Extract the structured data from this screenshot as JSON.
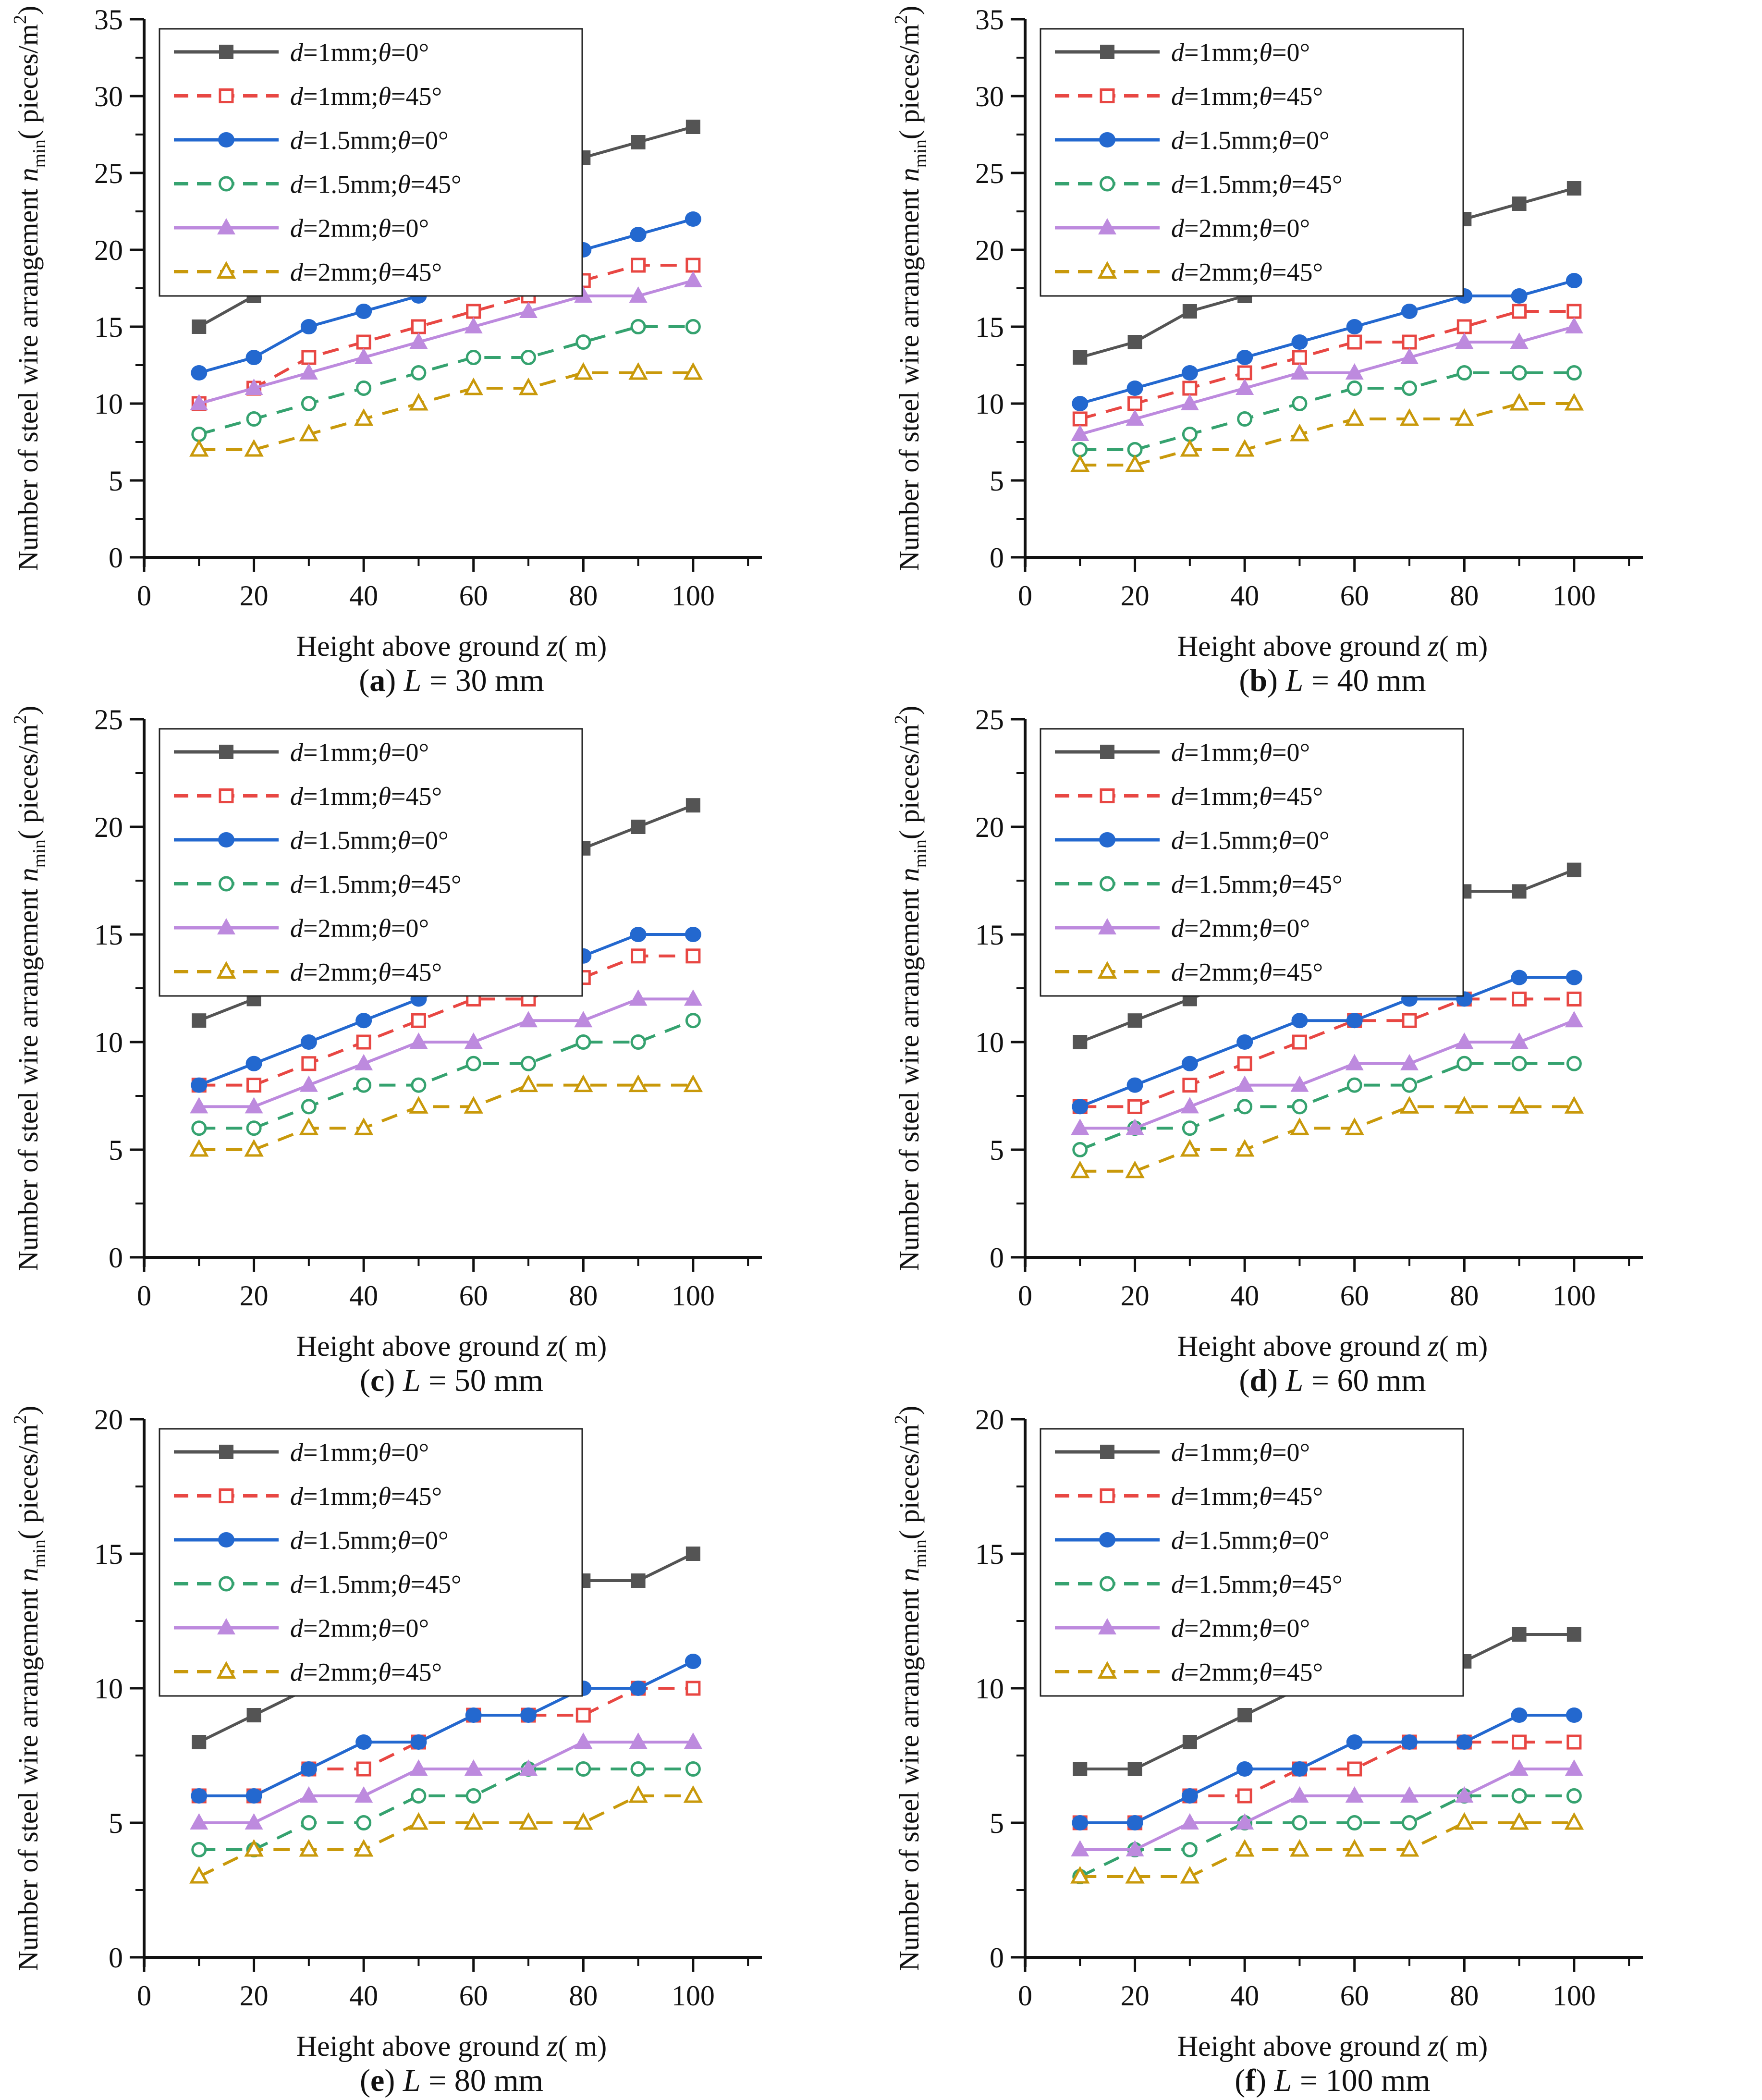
{
  "figure": {
    "description": "Six-panel line chart figure: minimum steel wire arrangement density versus height above ground for different wire diameters d and angles θ, at six wire lengths L"
  },
  "shared": {
    "xlabel": {
      "text": "Height above ground ",
      "var": "z",
      "unit": "(  m)"
    },
    "ylabel": {
      "text": "Number of steel wire arrangement ",
      "var": "n",
      "sub": "min",
      "unit_pre": "(  pieces/m",
      "sup": "2",
      "unit_post": ")"
    },
    "x_ticks": [
      0,
      20,
      40,
      60,
      80,
      100
    ],
    "x_minor_ticks": [
      10,
      30,
      50,
      70,
      90,
      110
    ],
    "xlim": [
      0,
      112
    ],
    "axis_color": "#111111",
    "legend": [
      {
        "label": "d=1mm;θ=0°",
        "color": "#545454",
        "marker": "square",
        "filled": true,
        "dashed": false
      },
      {
        "label": "d=1mm;θ=45°",
        "color": "#e84743",
        "marker": "square",
        "filled": false,
        "dashed": true
      },
      {
        "label": "d=1.5mm;θ=0°",
        "color": "#2368cf",
        "marker": "circle",
        "filled": true,
        "dashed": false
      },
      {
        "label": "d=1.5mm;θ=45°",
        "color": "#35a26f",
        "marker": "circle",
        "filled": false,
        "dashed": true
      },
      {
        "label": "d=2mm;θ=0°",
        "color": "#bd8ade",
        "marker": "triangle",
        "filled": true,
        "dashed": false
      },
      {
        "label": "d=2mm;θ=45°",
        "color": "#c9990b",
        "marker": "triangle",
        "filled": false,
        "dashed": true
      }
    ]
  },
  "chart_data": [
    {
      "type": "line",
      "panel": "a",
      "caption": {
        "letter": "a",
        "var": "L",
        "value": "30 mm"
      },
      "ylim": [
        0,
        35
      ],
      "yticks": [
        0,
        5,
        10,
        15,
        20,
        25,
        30,
        35
      ],
      "x": [
        10,
        20,
        30,
        40,
        50,
        60,
        70,
        80,
        90,
        100
      ],
      "series": [
        {
          "name": "d=1mm;θ=0°",
          "values": [
            15,
            17,
            19,
            21,
            22,
            24,
            25,
            26,
            27,
            28
          ]
        },
        {
          "name": "d=1mm;θ=45°",
          "values": [
            10,
            11,
            13,
            14,
            15,
            16,
            17,
            18,
            19,
            19
          ]
        },
        {
          "name": "d=1.5mm;θ=0°",
          "values": [
            12,
            13,
            15,
            16,
            17,
            19,
            20,
            20,
            21,
            22
          ]
        },
        {
          "name": "d=1.5mm;θ=45°",
          "values": [
            8,
            9,
            10,
            11,
            12,
            13,
            13,
            14,
            15,
            15
          ]
        },
        {
          "name": "d=2mm;θ=0°",
          "values": [
            10,
            11,
            12,
            13,
            14,
            15,
            16,
            17,
            17,
            18
          ]
        },
        {
          "name": "d=2mm;θ=45°",
          "values": [
            7,
            7,
            8,
            9,
            10,
            11,
            11,
            12,
            12,
            12
          ]
        }
      ]
    },
    {
      "type": "line",
      "panel": "b",
      "caption": {
        "letter": "b",
        "var": "L",
        "value": "40 mm"
      },
      "ylim": [
        0,
        35
      ],
      "yticks": [
        0,
        5,
        10,
        15,
        20,
        25,
        30,
        35
      ],
      "x": [
        10,
        20,
        30,
        40,
        50,
        60,
        70,
        80,
        90,
        100
      ],
      "series": [
        {
          "name": "d=1mm;θ=0°",
          "values": [
            13,
            14,
            16,
            17,
            19,
            20,
            21,
            22,
            23,
            24
          ]
        },
        {
          "name": "d=1mm;θ=45°",
          "values": [
            9,
            10,
            11,
            12,
            13,
            14,
            14,
            15,
            16,
            16
          ]
        },
        {
          "name": "d=1.5mm;θ=0°",
          "values": [
            10,
            11,
            12,
            13,
            14,
            15,
            16,
            17,
            17,
            18
          ]
        },
        {
          "name": "d=1.5mm;θ=45°",
          "values": [
            7,
            7,
            8,
            9,
            10,
            11,
            11,
            12,
            12,
            12
          ]
        },
        {
          "name": "d=2mm;θ=0°",
          "values": [
            8,
            9,
            10,
            11,
            12,
            12,
            13,
            14,
            14,
            15
          ]
        },
        {
          "name": "d=2mm;θ=45°",
          "values": [
            6,
            6,
            7,
            7,
            8,
            9,
            9,
            9,
            10,
            10
          ]
        }
      ]
    },
    {
      "type": "line",
      "panel": "c",
      "caption": {
        "letter": "c",
        "var": "L",
        "value": "50 mm"
      },
      "ylim": [
        0,
        25
      ],
      "yticks": [
        0,
        5,
        10,
        15,
        20,
        25
      ],
      "x": [
        10,
        20,
        30,
        40,
        50,
        60,
        70,
        80,
        90,
        100
      ],
      "series": [
        {
          "name": "d=1mm;θ=0°",
          "values": [
            11,
            12,
            14,
            15,
            16,
            17,
            18,
            19,
            20,
            21
          ]
        },
        {
          "name": "d=1mm;θ=45°",
          "values": [
            8,
            8,
            9,
            10,
            11,
            12,
            12,
            13,
            14,
            14
          ]
        },
        {
          "name": "d=1.5mm;θ=0°",
          "values": [
            8,
            9,
            10,
            11,
            12,
            13,
            14,
            14,
            15,
            15
          ]
        },
        {
          "name": "d=1.5mm;θ=45°",
          "values": [
            6,
            6,
            7,
            8,
            8,
            9,
            9,
            10,
            10,
            11
          ]
        },
        {
          "name": "d=2mm;θ=0°",
          "values": [
            7,
            7,
            8,
            9,
            10,
            10,
            11,
            11,
            12,
            12
          ]
        },
        {
          "name": "d=2mm;θ=45°",
          "values": [
            5,
            5,
            6,
            6,
            7,
            7,
            8,
            8,
            8,
            8
          ]
        }
      ]
    },
    {
      "type": "line",
      "panel": "d",
      "caption": {
        "letter": "d",
        "var": "L",
        "value": "60 mm"
      },
      "ylim": [
        0,
        25
      ],
      "yticks": [
        0,
        5,
        10,
        15,
        20,
        25
      ],
      "x": [
        10,
        20,
        30,
        40,
        50,
        60,
        70,
        80,
        90,
        100
      ],
      "series": [
        {
          "name": "d=1mm;θ=0°",
          "values": [
            10,
            11,
            12,
            13,
            14,
            15,
            16,
            17,
            17,
            18
          ]
        },
        {
          "name": "d=1mm;θ=45°",
          "values": [
            7,
            7,
            8,
            9,
            10,
            11,
            11,
            12,
            12,
            12
          ]
        },
        {
          "name": "d=1.5mm;θ=0°",
          "values": [
            7,
            8,
            9,
            10,
            11,
            11,
            12,
            12,
            13,
            13
          ]
        },
        {
          "name": "d=1.5mm;θ=45°",
          "values": [
            5,
            6,
            6,
            7,
            7,
            8,
            8,
            9,
            9,
            9
          ]
        },
        {
          "name": "d=2mm;θ=0°",
          "values": [
            6,
            6,
            7,
            8,
            8,
            9,
            9,
            10,
            10,
            11
          ]
        },
        {
          "name": "d=2mm;θ=45°",
          "values": [
            4,
            4,
            5,
            5,
            6,
            6,
            7,
            7,
            7,
            7
          ]
        }
      ]
    },
    {
      "type": "line",
      "panel": "e",
      "caption": {
        "letter": "e",
        "var": "L",
        "value": "80 mm"
      },
      "ylim": [
        0,
        20
      ],
      "yticks": [
        0,
        5,
        10,
        15,
        20
      ],
      "x": [
        10,
        20,
        30,
        40,
        50,
        60,
        70,
        80,
        90,
        100
      ],
      "series": [
        {
          "name": "d=1mm;θ=0°",
          "values": [
            8,
            9,
            10,
            11,
            12,
            12,
            13,
            14,
            14,
            15
          ]
        },
        {
          "name": "d=1mm;θ=45°",
          "values": [
            6,
            6,
            7,
            7,
            8,
            9,
            9,
            9,
            10,
            10
          ]
        },
        {
          "name": "d=1.5mm;θ=0°",
          "values": [
            6,
            6,
            7,
            8,
            8,
            9,
            9,
            10,
            10,
            11
          ]
        },
        {
          "name": "d=1.5mm;θ=45°",
          "values": [
            4,
            4,
            5,
            5,
            6,
            6,
            7,
            7,
            7,
            7
          ]
        },
        {
          "name": "d=2mm;θ=0°",
          "values": [
            5,
            5,
            6,
            6,
            7,
            7,
            7,
            8,
            8,
            8
          ]
        },
        {
          "name": "d=2mm;θ=45°",
          "values": [
            3,
            4,
            4,
            4,
            5,
            5,
            5,
            5,
            6,
            6
          ]
        }
      ]
    },
    {
      "type": "line",
      "panel": "f",
      "caption": {
        "letter": "f",
        "var": "L",
        "value": "100 mm"
      },
      "ylim": [
        0,
        20
      ],
      "yticks": [
        0,
        5,
        10,
        15,
        20
      ],
      "x": [
        10,
        20,
        30,
        40,
        50,
        60,
        70,
        80,
        90,
        100
      ],
      "series": [
        {
          "name": "d=1mm;θ=0°",
          "values": [
            7,
            7,
            8,
            9,
            10,
            10,
            11,
            11,
            12,
            12
          ]
        },
        {
          "name": "d=1mm;θ=45°",
          "values": [
            5,
            5,
            6,
            6,
            7,
            7,
            8,
            8,
            8,
            8
          ]
        },
        {
          "name": "d=1.5mm;θ=0°",
          "values": [
            5,
            5,
            6,
            7,
            7,
            8,
            8,
            8,
            9,
            9
          ]
        },
        {
          "name": "d=1.5mm;θ=45°",
          "values": [
            3,
            4,
            4,
            5,
            5,
            5,
            5,
            6,
            6,
            6
          ]
        },
        {
          "name": "d=2mm;θ=0°",
          "values": [
            4,
            4,
            5,
            5,
            6,
            6,
            6,
            6,
            7,
            7
          ]
        },
        {
          "name": "d=2mm;θ=45°",
          "values": [
            3,
            3,
            3,
            4,
            4,
            4,
            4,
            5,
            5,
            5
          ]
        }
      ]
    }
  ]
}
